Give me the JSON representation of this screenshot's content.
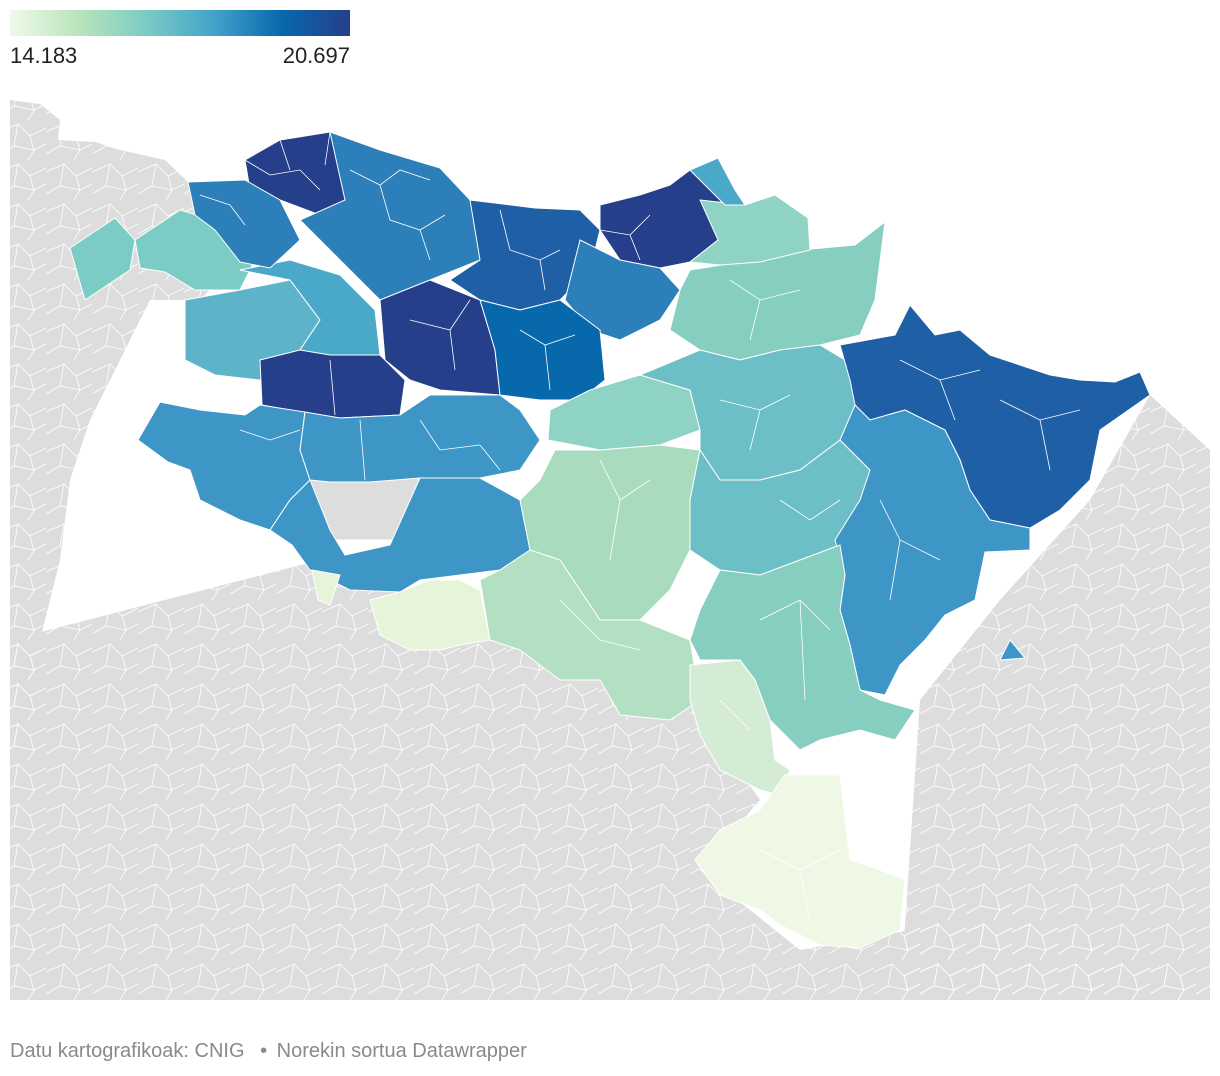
{
  "legend": {
    "min_label": "14.183",
    "max_label": "20.697",
    "gradient_colors": [
      "#f0f9e8",
      "#bae4bc",
      "#7bccc4",
      "#43a2ca",
      "#0868ac",
      "#253f8a"
    ]
  },
  "map": {
    "background_color": "#dddddd",
    "border_color": "#ffffff"
  },
  "footer": {
    "source_label": "Datu kartografikoak: CNIG",
    "credit_label": "Norekin sortua Datawrapper",
    "separator": "•"
  }
}
